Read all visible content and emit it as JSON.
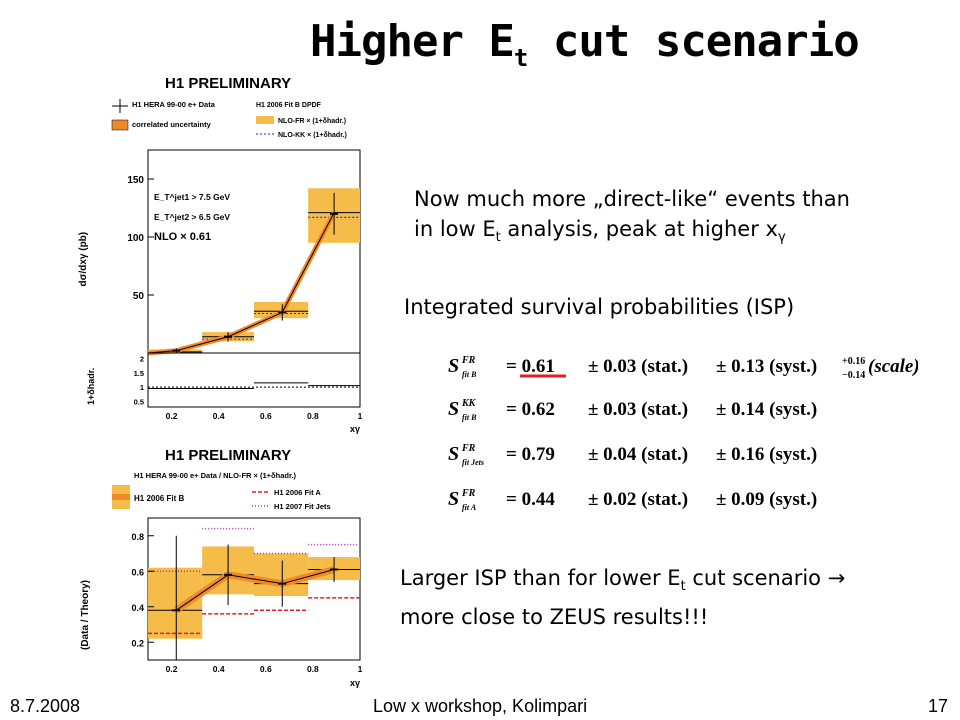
{
  "slide": {
    "title_main": "Higher E",
    "title_sub": "t",
    "title_rest": " cut scenario",
    "text1_line1": "Now much more „direct-like“ events than",
    "text1_line2a": "in low E",
    "text1_line2sub": "t",
    "text1_line2b": " analysis, peak at higher x",
    "text1_line2sub2": "γ",
    "isp_heading": "Integrated survival probabilities (ISP)",
    "conclusion_line1a": "Larger ISP than for lower E",
    "conclusion_line1sub": "t",
    "conclusion_line1b": " cut scenario →",
    "conclusion_line2": "more close to ZEUS results!!!",
    "footer_date": "8.7.2008",
    "footer_event": "Low x workshop, Kolimpari",
    "footer_page": "17"
  },
  "equations": [
    {
      "label_sup": "FR",
      "label_sub": "fit B",
      "value": "= 0.61",
      "stat": "± 0.03 (stat.)",
      "syst": "± 0.13 (syst.)",
      "extra_up": "+0.16",
      "extra_down": "−0.14",
      "extra_label": "(scale)"
    },
    {
      "label_sup": "KK",
      "label_sub": "fit B",
      "value": "= 0.62",
      "stat": "± 0.03 (stat.)",
      "syst": "± 0.14 (syst.)"
    },
    {
      "label_sup": "FR",
      "label_sub": "fit Jets",
      "value": "= 0.79",
      "stat": "± 0.04 (stat.)",
      "syst": "± 0.16 (syst.)"
    },
    {
      "label_sup": "FR",
      "label_sub": "fit A",
      "value": "= 0.44",
      "stat": "± 0.02 (stat.)",
      "syst": "± 0.09 (syst.)"
    }
  ],
  "colors": {
    "band_fill": "#f6bc4a",
    "band_line": "#e07a10",
    "nlo_fill": "#f08a28",
    "eq_underline": "#e02020",
    "fitA": "#e02020",
    "fitJets": "#b030c0",
    "kk": "#2020d0"
  },
  "chart_data": [
    {
      "type": "line",
      "title": "H1 PRELIMINARY",
      "legend": [
        "H1 HERA 99-00 e+ Data",
        "correlated uncertainty",
        "H1 2006 Fit B DPDF",
        "NLO-FR × (1+δhadr.)",
        "NLO-KK × (1+δhadr.)"
      ],
      "annotations": [
        "E_T^jet1 > 7.5 GeV",
        "E_T^jet2 > 6.5 GeV",
        "NLO × 0.61"
      ],
      "xlabel": "xγ",
      "ylabel": "dσ/dxγ (pb)",
      "xlim": [
        0.1,
        1.0
      ],
      "ylim": [
        0,
        175
      ],
      "x_ticks": [
        "0.2",
        "0.4",
        "0.6",
        "0.8",
        "1"
      ],
      "y_ticks": [
        "50",
        "100",
        "150"
      ],
      "bins": [
        [
          0.1,
          0.33
        ],
        [
          0.33,
          0.55
        ],
        [
          0.55,
          0.78
        ],
        [
          0.78,
          1.0
        ]
      ],
      "data_x": [
        0.22,
        0.44,
        0.67,
        0.89
      ],
      "data_y": [
        2,
        14,
        35,
        120
      ],
      "data_err": [
        2,
        4,
        7,
        18
      ],
      "band_low": [
        0,
        10,
        30,
        95
      ],
      "band_high": [
        3,
        18,
        44,
        142
      ],
      "nlo_fr": [
        1,
        14,
        36,
        121
      ],
      "nlo_kk": [
        1,
        12,
        34,
        117
      ],
      "nlo_fr_line": [
        [
          0.1,
          0
        ],
        [
          0.22,
          2
        ],
        [
          0.44,
          14
        ],
        [
          0.67,
          35
        ],
        [
          0.89,
          121
        ]
      ],
      "had_corr": {
        "ylabel": "1+δhadr.",
        "y_ticks": [
          "0.5",
          "1",
          "1.5",
          "2"
        ],
        "ylim": [
          0.3,
          2.2
        ],
        "values": [
          0.95,
          0.95,
          1.15,
          1.05
        ]
      }
    },
    {
      "type": "line",
      "title": "H1 PRELIMINARY",
      "subtitle": "H1 HERA 99-00 e+ Data / NLO-FR × (1+δhadr.)",
      "legend": [
        "H1 2006 Fit B",
        "H1 2006 Fit A",
        "H1 2007 Fit Jets"
      ],
      "xlabel": "xγ",
      "ylabel": "(Data / Theory)",
      "xlim": [
        0.1,
        1.0
      ],
      "ylim": [
        0.1,
        0.9
      ],
      "x_ticks": [
        "0.2",
        "0.4",
        "0.6",
        "0.8",
        "1"
      ],
      "y_ticks": [
        "0.2",
        "0.4",
        "0.6",
        "0.8"
      ],
      "bins": [
        [
          0.1,
          0.33
        ],
        [
          0.33,
          0.55
        ],
        [
          0.55,
          0.78
        ],
        [
          0.78,
          1.0
        ]
      ],
      "data_x": [
        0.22,
        0.44,
        0.67,
        0.89
      ],
      "data_y": [
        0.38,
        0.58,
        0.53,
        0.61
      ],
      "data_err": [
        0.42,
        0.17,
        0.13,
        0.07
      ],
      "band_low": [
        0.22,
        0.47,
        0.46,
        0.55
      ],
      "band_high": [
        0.62,
        0.74,
        0.7,
        0.68
      ],
      "fit_b": [
        0.38,
        0.58,
        0.53,
        0.61
      ],
      "fit_a": [
        0.25,
        0.36,
        0.38,
        0.45
      ],
      "fit_jets": [
        0.6,
        0.84,
        0.7,
        0.75
      ]
    }
  ]
}
